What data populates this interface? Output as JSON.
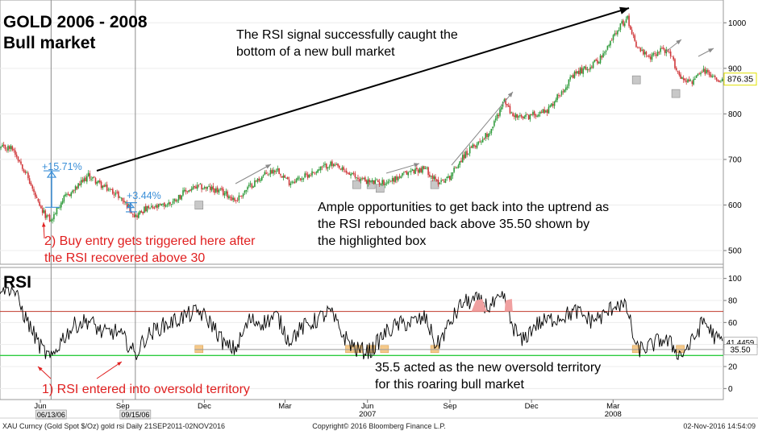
{
  "chart_data": [
    {
      "type": "line",
      "panel": "price",
      "title": "GOLD 2006 - 2008",
      "subtitle": "Bull market",
      "ylim": [
        470,
        1050
      ],
      "yticks": [
        500,
        600,
        700,
        800,
        900,
        1000
      ],
      "last_price_label": "876.35",
      "x": [
        "2006-05-01",
        "2006-05-15",
        "2006-06-01",
        "2006-06-13",
        "2006-06-25",
        "2006-07-10",
        "2006-07-25",
        "2006-08-10",
        "2006-08-25",
        "2006-09-08",
        "2006-09-15",
        "2006-09-25",
        "2006-10-10",
        "2006-10-25",
        "2006-11-10",
        "2006-11-25",
        "2006-12-10",
        "2006-12-25",
        "2007-01-05",
        "2007-01-20",
        "2007-02-05",
        "2007-02-20",
        "2007-03-05",
        "2007-03-20",
        "2007-04-05",
        "2007-04-20",
        "2007-05-05",
        "2007-05-20",
        "2007-06-05",
        "2007-06-20",
        "2007-07-05",
        "2007-07-20",
        "2007-08-05",
        "2007-08-17",
        "2007-08-31",
        "2007-09-15",
        "2007-10-01",
        "2007-10-15",
        "2007-11-01",
        "2007-11-08",
        "2007-11-20",
        "2007-12-05",
        "2007-12-20",
        "2008-01-05",
        "2008-01-20",
        "2008-02-05",
        "2008-02-20",
        "2008-03-05",
        "2008-03-17",
        "2008-03-27",
        "2008-04-10",
        "2008-04-25",
        "2008-05-05",
        "2008-05-15",
        "2008-05-28",
        "2008-06-10",
        "2008-06-25"
      ],
      "values": [
        725,
        675,
        590,
        565,
        610,
        635,
        665,
        640,
        625,
        595,
        575,
        590,
        595,
        605,
        630,
        640,
        635,
        625,
        610,
        640,
        665,
        680,
        650,
        660,
        675,
        690,
        675,
        660,
        650,
        650,
        660,
        675,
        680,
        650,
        660,
        705,
        735,
        760,
        830,
        800,
        790,
        800,
        810,
        855,
        890,
        905,
        930,
        985,
        1010,
        950,
        920,
        945,
        925,
        880,
        870,
        895,
        876
      ]
    },
    {
      "type": "line",
      "panel": "rsi",
      "title": "RSI",
      "ylim": [
        -10,
        110
      ],
      "yticks": [
        0,
        20,
        40,
        60,
        80,
        100
      ],
      "overbought": 70,
      "oversold": 30,
      "support_level": 35.5,
      "last_value_label": "41.4459",
      "support_label": "35.50",
      "x": [
        "2006-05-01",
        "2006-05-15",
        "2006-06-01",
        "2006-06-13",
        "2006-06-25",
        "2006-07-10",
        "2006-07-25",
        "2006-08-10",
        "2006-08-25",
        "2006-09-08",
        "2006-09-15",
        "2006-09-25",
        "2006-10-10",
        "2006-10-25",
        "2006-11-10",
        "2006-11-25",
        "2006-12-10",
        "2006-12-25",
        "2007-01-05",
        "2007-01-20",
        "2007-02-05",
        "2007-02-20",
        "2007-03-05",
        "2007-03-20",
        "2007-04-05",
        "2007-04-20",
        "2007-05-05",
        "2007-05-20",
        "2007-06-05",
        "2007-06-20",
        "2007-07-05",
        "2007-07-20",
        "2007-08-05",
        "2007-08-17",
        "2007-08-31",
        "2007-09-15",
        "2007-10-01",
        "2007-10-15",
        "2007-11-01",
        "2007-11-08",
        "2007-11-20",
        "2007-12-05",
        "2007-12-20",
        "2008-01-05",
        "2008-01-20",
        "2008-02-05",
        "2008-02-20",
        "2008-03-05",
        "2008-03-17",
        "2008-03-27",
        "2008-04-10",
        "2008-04-25",
        "2008-05-05",
        "2008-05-15",
        "2008-05-28",
        "2008-06-10",
        "2008-06-25"
      ],
      "values": [
        92,
        65,
        38,
        26,
        45,
        58,
        62,
        50,
        52,
        40,
        30,
        45,
        55,
        60,
        66,
        70,
        58,
        38,
        36,
        62,
        60,
        66,
        44,
        55,
        62,
        70,
        48,
        35,
        34,
        50,
        58,
        60,
        64,
        38,
        58,
        78,
        80,
        74,
        82,
        60,
        42,
        58,
        62,
        66,
        70,
        62,
        66,
        78,
        72,
        35,
        38,
        45,
        40,
        30,
        42,
        62,
        44
      ]
    }
  ],
  "x_axis": {
    "tick_labels": [
      {
        "date": "2006-06-01",
        "label": "Jun"
      },
      {
        "date": "2006-09-01",
        "label": "Sep"
      },
      {
        "date": "2006-12-01",
        "label": "Dec"
      },
      {
        "date": "2007-03-01",
        "label": "Mar"
      },
      {
        "date": "2007-06-01",
        "label": "Jun"
      },
      {
        "date": "2007-09-01",
        "label": "Sep"
      },
      {
        "date": "2007-12-01",
        "label": "Dec"
      },
      {
        "date": "2008-03-01",
        "label": "Mar"
      }
    ],
    "year_labels": [
      {
        "date": "2007-06-01",
        "label": "2007"
      },
      {
        "date": "2008-03-01",
        "label": "2008"
      }
    ],
    "date_boxes": [
      {
        "date": "2006-06-13",
        "label": "06/13/06"
      },
      {
        "date": "2006-09-15",
        "label": "09/15/06"
      }
    ]
  },
  "annotations": {
    "top_note": [
      "The RSI signal successfully caught the",
      "bottom of a new bull market"
    ],
    "gain_1": "+15.71%",
    "gain_2": "+3.44%",
    "buy_note": [
      "2) Buy entry gets triggered here after",
      "the RSI recovered above 30"
    ],
    "uptrend_note": [
      "Ample opportunities to get back into the uptrend as",
      "the RSI rebounded back above 35.50 shown by",
      "the highlighted box"
    ],
    "oversold_note": "1) RSI entered into oversold territory",
    "new_oversold_note": [
      "35.5 acted as the new oversold territory",
      "for this roaring bull market"
    ]
  },
  "footer": {
    "left": "XAU Curncy (Gold Spot   $/Oz) gold rsi  Daily 21SEP2011-02NOV2016",
    "center": "Copyright© 2016 Bloomberg Finance L.P.",
    "right": "02-Nov-2016 14:54:09"
  },
  "colors": {
    "up_candle": "#2e9a3a",
    "down_candle": "#d0373a",
    "annotation_red": "#e02020",
    "annotation_blue": "#3a8fd8",
    "overbought_line": "#c0392b",
    "oversold_line": "#2ecc40",
    "highlight_box_price": "#c8c8c8",
    "highlight_box_rsi": "#f5c98a",
    "overbought_fill": "#f0a0a0"
  }
}
